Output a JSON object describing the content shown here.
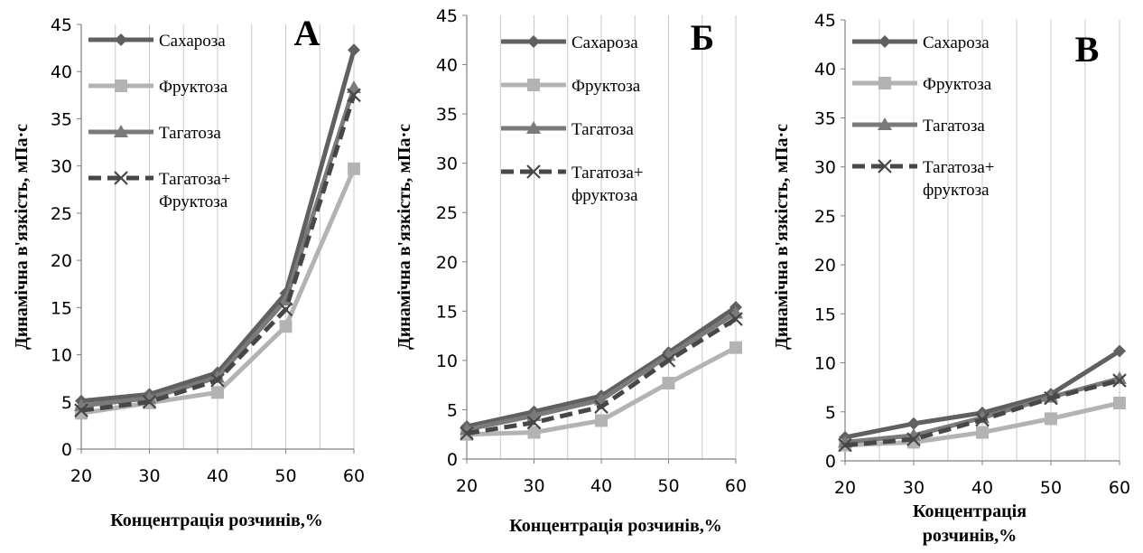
{
  "chart_data": [
    {
      "type": "line",
      "panel_label": "А",
      "x": [
        20,
        30,
        40,
        50,
        60
      ],
      "xlabel": "Концентрація розчинів,%",
      "ylabel": "Динамічна в'язкість, мПа·с",
      "ylim": [
        0,
        45
      ],
      "yticks": [
        "0",
        "5",
        "10",
        "15",
        "20",
        "25",
        "30",
        "35",
        "40",
        "45"
      ],
      "xticks": [
        "20",
        "30",
        "40",
        "50",
        "60"
      ],
      "grid": "vertical",
      "legend_position": "top-left",
      "series": [
        {
          "name": "Сахароза",
          "values": [
            5.1,
            5.8,
            8.1,
            16.5,
            42.3
          ],
          "color": "#606060",
          "marker": "diamond",
          "dash": "solid"
        },
        {
          "name": "Фруктоза",
          "values": [
            3.8,
            4.9,
            6.0,
            13.0,
            29.7
          ],
          "color": "#b3b3b3",
          "marker": "square",
          "dash": "solid"
        },
        {
          "name": "Тагатоза",
          "values": [
            4.6,
            5.4,
            7.6,
            15.8,
            38.3
          ],
          "color": "#7a7a7a",
          "marker": "triangle",
          "dash": "solid"
        },
        {
          "name": "Тагатоза+ Фруктоза",
          "label_lines": [
            "Тагатоза+",
            "Фруктоза"
          ],
          "values": [
            4.1,
            5.0,
            7.3,
            14.8,
            37.5
          ],
          "color": "#474747",
          "marker": "x",
          "dash": "dashed"
        }
      ]
    },
    {
      "type": "line",
      "panel_label": "Б",
      "x": [
        20,
        30,
        40,
        50,
        60
      ],
      "xlabel": "Концентрація розчинів,%",
      "ylabel": "Динамічна в'язкість, мПа·с",
      "ylim": [
        0,
        45
      ],
      "yticks": [
        "0",
        "5",
        "10",
        "15",
        "20",
        "25",
        "30",
        "35",
        "40",
        "45"
      ],
      "xticks": [
        "20",
        "30",
        "40",
        "50",
        "60"
      ],
      "grid": "vertical",
      "legend_position": "top-left",
      "series": [
        {
          "name": "Сахароза",
          "values": [
            3.3,
            4.8,
            6.4,
            10.8,
            15.4
          ],
          "color": "#606060",
          "marker": "diamond",
          "dash": "solid"
        },
        {
          "name": "Фруктоза",
          "values": [
            2.5,
            2.7,
            3.9,
            7.7,
            11.3
          ],
          "color": "#b3b3b3",
          "marker": "square",
          "dash": "solid"
        },
        {
          "name": "Тагатоза",
          "values": [
            3.0,
            4.4,
            6.0,
            10.5,
            14.8
          ],
          "color": "#7a7a7a",
          "marker": "triangle",
          "dash": "solid"
        },
        {
          "name": "Тагатоза+ фруктоза",
          "label_lines": [
            "Тагатоза+",
            "фруктоза"
          ],
          "values": [
            2.6,
            3.7,
            5.3,
            10.0,
            14.2
          ],
          "color": "#474747",
          "marker": "x",
          "dash": "dashed"
        }
      ]
    },
    {
      "type": "line",
      "panel_label": "В",
      "x": [
        20,
        30,
        40,
        50,
        60
      ],
      "xlabel": "Концентрація розчинів,%",
      "xlabel_lines": [
        "Концентрація",
        "розчинів,%"
      ],
      "ylabel": "Динамічна в'язкість, мПа·с",
      "ylim": [
        0,
        45
      ],
      "yticks": [
        "0",
        "5",
        "10",
        "15",
        "20",
        "25",
        "30",
        "35",
        "40",
        "45"
      ],
      "xticks": [
        "20",
        "30",
        "40",
        "50",
        "60"
      ],
      "grid": "vertical",
      "legend_position": "top-left",
      "series": [
        {
          "name": "Сахароза",
          "values": [
            2.4,
            3.8,
            4.9,
            6.8,
            11.2
          ],
          "color": "#606060",
          "marker": "diamond",
          "dash": "solid"
        },
        {
          "name": "Фруктоза",
          "values": [
            1.6,
            1.9,
            2.9,
            4.3,
            5.9
          ],
          "color": "#b3b3b3",
          "marker": "square",
          "dash": "solid"
        },
        {
          "name": "Тагатоза",
          "values": [
            1.9,
            2.6,
            4.4,
            6.5,
            8.4
          ],
          "color": "#7a7a7a",
          "marker": "triangle",
          "dash": "solid"
        },
        {
          "name": "Тагатоза+ фруктоза",
          "label_lines": [
            "Тагатоза+",
            "фруктоза"
          ],
          "values": [
            1.6,
            2.2,
            4.2,
            6.4,
            8.2
          ],
          "color": "#474747",
          "marker": "x",
          "dash": "dashed"
        }
      ]
    }
  ]
}
